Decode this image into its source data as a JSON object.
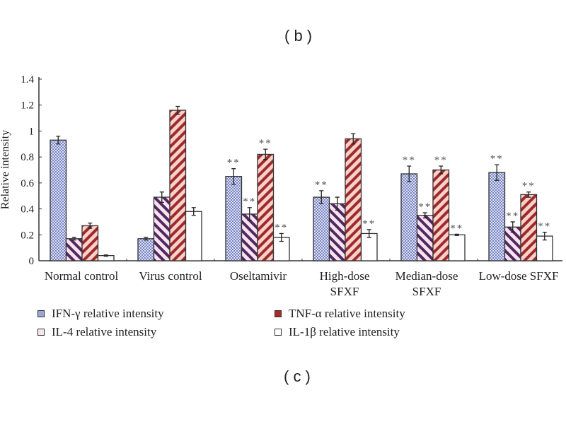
{
  "top_panel_label": "( b )",
  "panel_label": "( c )",
  "chart_data": {
    "type": "bar",
    "title": "",
    "xlabel": "",
    "ylabel": "Relative intensity",
    "ylim": [
      0,
      1.4
    ],
    "yticks": [
      "0",
      "0.2",
      "0.4",
      "0.6",
      "0.8",
      "1",
      "1.2",
      "1.4"
    ],
    "categories": [
      [
        "Normal control"
      ],
      [
        "Virus control"
      ],
      [
        "Oseltamivir"
      ],
      [
        "High-dose",
        "SFXF"
      ],
      [
        "Median-dose",
        "SFXF"
      ],
      [
        "Low-dose SFXF"
      ]
    ],
    "series": [
      {
        "name": "IFN-γ relative intensity",
        "pattern": "dots",
        "color": "#9aa6d8",
        "values": [
          0.93,
          0.17,
          0.65,
          0.49,
          0.67,
          0.68
        ],
        "errors": [
          0.03,
          0.01,
          0.06,
          0.05,
          0.06,
          0.06
        ],
        "significance": [
          "",
          "",
          "**",
          "**",
          "**",
          "**"
        ]
      },
      {
        "name": "IL-4 relative intensity",
        "pattern": "backslash",
        "color": "#5a2d6e",
        "values": [
          0.17,
          0.49,
          0.36,
          0.44,
          0.35,
          0.26
        ],
        "errors": [
          0.01,
          0.04,
          0.05,
          0.05,
          0.02,
          0.04
        ],
        "significance": [
          "",
          "",
          "**",
          "",
          "**",
          "**"
        ]
      },
      {
        "name": "TNF-α relative intensity",
        "pattern": "slash",
        "color": "#a82a2a",
        "values": [
          0.27,
          1.16,
          0.82,
          0.94,
          0.7,
          0.51
        ],
        "errors": [
          0.02,
          0.03,
          0.04,
          0.04,
          0.03,
          0.02
        ],
        "significance": [
          "",
          "",
          "**",
          "",
          "**",
          "**"
        ]
      },
      {
        "name": "IL-1β relative intensity",
        "pattern": "none",
        "color": "#ffffff",
        "values": [
          0.04,
          0.38,
          0.18,
          0.21,
          0.2,
          0.19
        ],
        "errors": [
          0.005,
          0.03,
          0.03,
          0.03,
          0.005,
          0.03
        ],
        "significance": [
          "",
          "",
          "**",
          "**",
          "**",
          "**"
        ]
      }
    ],
    "legend": {
      "placement": "bottom",
      "items": [
        "IFN-γ relative intensity",
        "TNF-α relative intensity",
        "IL-4 relative intensity",
        "IL-1β relative intensity"
      ]
    }
  }
}
